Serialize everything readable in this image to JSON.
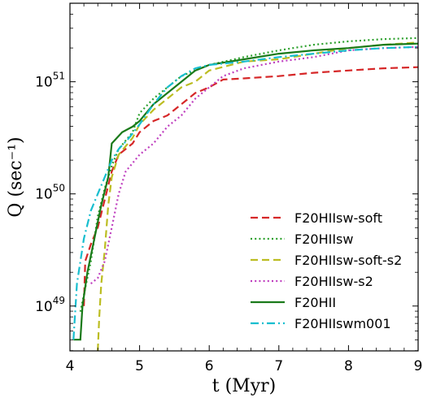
{
  "chart_data": {
    "type": "line",
    "title": "",
    "xlabel": "t (Myr)",
    "ylabel": "Q (sec⁻¹)",
    "xlim": [
      4,
      9
    ],
    "ylim_log10": [
      48.6,
      51.7
    ],
    "yscale": "log",
    "x_ticks": [
      "4",
      "5",
      "6",
      "7",
      "8",
      "9"
    ],
    "y_ticks": [
      {
        "base": "10",
        "exp": "49",
        "log10": 49
      },
      {
        "base": "10",
        "exp": "50",
        "log10": 50
      },
      {
        "base": "10",
        "exp": "51",
        "log10": 51
      }
    ],
    "legend_position": "lower right",
    "grid": false,
    "series": [
      {
        "name": "F20HIIsw-soft",
        "color": "#d62728",
        "style": "dashed",
        "points": [
          [
            4.2,
            49.0
          ],
          [
            4.22,
            49.4
          ],
          [
            4.3,
            49.55
          ],
          [
            4.4,
            49.7
          ],
          [
            4.5,
            49.95
          ],
          [
            4.6,
            50.2
          ],
          [
            4.7,
            50.35
          ],
          [
            4.9,
            50.45
          ],
          [
            5.0,
            50.55
          ],
          [
            5.2,
            50.65
          ],
          [
            5.4,
            50.7
          ],
          [
            5.6,
            50.8
          ],
          [
            5.8,
            50.9
          ],
          [
            6.0,
            50.95
          ],
          [
            6.2,
            51.02
          ],
          [
            6.5,
            51.03
          ],
          [
            7.0,
            51.05
          ],
          [
            7.5,
            51.08
          ],
          [
            8.0,
            51.1
          ],
          [
            8.5,
            51.12
          ],
          [
            9.0,
            51.13
          ]
        ]
      },
      {
        "name": "F20HIIsw",
        "color": "#2ca02c",
        "style": "dotted",
        "points": [
          [
            4.15,
            48.95
          ],
          [
            4.2,
            49.1
          ],
          [
            4.3,
            49.4
          ],
          [
            4.4,
            49.8
          ],
          [
            4.5,
            50.05
          ],
          [
            4.6,
            50.25
          ],
          [
            4.7,
            50.4
          ],
          [
            4.9,
            50.55
          ],
          [
            5.0,
            50.72
          ],
          [
            5.2,
            50.85
          ],
          [
            5.4,
            50.95
          ],
          [
            5.6,
            51.05
          ],
          [
            5.8,
            51.1
          ],
          [
            6.0,
            51.15
          ],
          [
            6.5,
            51.22
          ],
          [
            7.0,
            51.28
          ],
          [
            7.5,
            51.33
          ],
          [
            8.0,
            51.36
          ],
          [
            8.5,
            51.38
          ],
          [
            9.0,
            51.39
          ]
        ]
      },
      {
        "name": "F20HIIsw-soft-s2",
        "color": "#bcbd22",
        "style": "dashed",
        "points": [
          [
            4.4,
            48.6
          ],
          [
            4.42,
            48.9
          ],
          [
            4.45,
            49.2
          ],
          [
            4.5,
            49.5
          ],
          [
            4.55,
            49.9
          ],
          [
            4.6,
            50.15
          ],
          [
            4.7,
            50.35
          ],
          [
            4.9,
            50.5
          ],
          [
            5.0,
            50.62
          ],
          [
            5.2,
            50.75
          ],
          [
            5.4,
            50.85
          ],
          [
            5.6,
            50.95
          ],
          [
            5.8,
            51.0
          ],
          [
            6.0,
            51.1
          ],
          [
            6.5,
            51.18
          ],
          [
            7.0,
            51.2
          ],
          [
            7.5,
            51.25
          ],
          [
            8.0,
            51.3
          ],
          [
            8.5,
            51.33
          ],
          [
            9.0,
            51.35
          ]
        ]
      },
      {
        "name": "F20HIIsw-s2",
        "color": "#bf3fbf",
        "style": "dotted",
        "points": [
          [
            4.3,
            49.2
          ],
          [
            4.4,
            49.25
          ],
          [
            4.5,
            49.4
          ],
          [
            4.6,
            49.7
          ],
          [
            4.7,
            50.0
          ],
          [
            4.8,
            50.2
          ],
          [
            5.0,
            50.35
          ],
          [
            5.2,
            50.45
          ],
          [
            5.4,
            50.6
          ],
          [
            5.6,
            50.7
          ],
          [
            5.8,
            50.85
          ],
          [
            6.0,
            50.95
          ],
          [
            6.2,
            51.05
          ],
          [
            6.5,
            51.12
          ],
          [
            7.0,
            51.18
          ],
          [
            7.5,
            51.22
          ],
          [
            8.0,
            51.28
          ],
          [
            8.5,
            51.3
          ],
          [
            9.0,
            51.31
          ]
        ]
      },
      {
        "name": "F20HII",
        "color": "#1a7a1a",
        "style": "solid",
        "points": [
          [
            4.05,
            48.7
          ],
          [
            4.15,
            48.7
          ],
          [
            4.18,
            49.0
          ],
          [
            4.25,
            49.3
          ],
          [
            4.35,
            49.6
          ],
          [
            4.45,
            49.9
          ],
          [
            4.55,
            50.15
          ],
          [
            4.6,
            50.45
          ],
          [
            4.75,
            50.55
          ],
          [
            4.9,
            50.6
          ],
          [
            5.0,
            50.65
          ],
          [
            5.2,
            50.8
          ],
          [
            5.4,
            50.9
          ],
          [
            5.6,
            51.0
          ],
          [
            5.8,
            51.1
          ],
          [
            6.0,
            51.15
          ],
          [
            6.5,
            51.2
          ],
          [
            7.0,
            51.25
          ],
          [
            7.5,
            51.28
          ],
          [
            8.0,
            51.3
          ],
          [
            8.5,
            51.33
          ],
          [
            9.0,
            51.34
          ]
        ]
      },
      {
        "name": "F20HIIswm001",
        "color": "#17becf",
        "style": "dashdot",
        "points": [
          [
            4.05,
            48.7
          ],
          [
            4.1,
            49.2
          ],
          [
            4.2,
            49.6
          ],
          [
            4.3,
            49.85
          ],
          [
            4.4,
            50.0
          ],
          [
            4.5,
            50.15
          ],
          [
            4.6,
            50.3
          ],
          [
            4.7,
            50.4
          ],
          [
            4.85,
            50.5
          ],
          [
            5.0,
            50.62
          ],
          [
            5.2,
            50.8
          ],
          [
            5.4,
            50.95
          ],
          [
            5.6,
            51.05
          ],
          [
            5.8,
            51.12
          ],
          [
            6.0,
            51.15
          ],
          [
            6.5,
            51.18
          ],
          [
            7.0,
            51.22
          ],
          [
            7.5,
            51.25
          ],
          [
            8.0,
            51.28
          ],
          [
            8.5,
            51.3
          ],
          [
            9.0,
            51.31
          ]
        ]
      }
    ]
  }
}
